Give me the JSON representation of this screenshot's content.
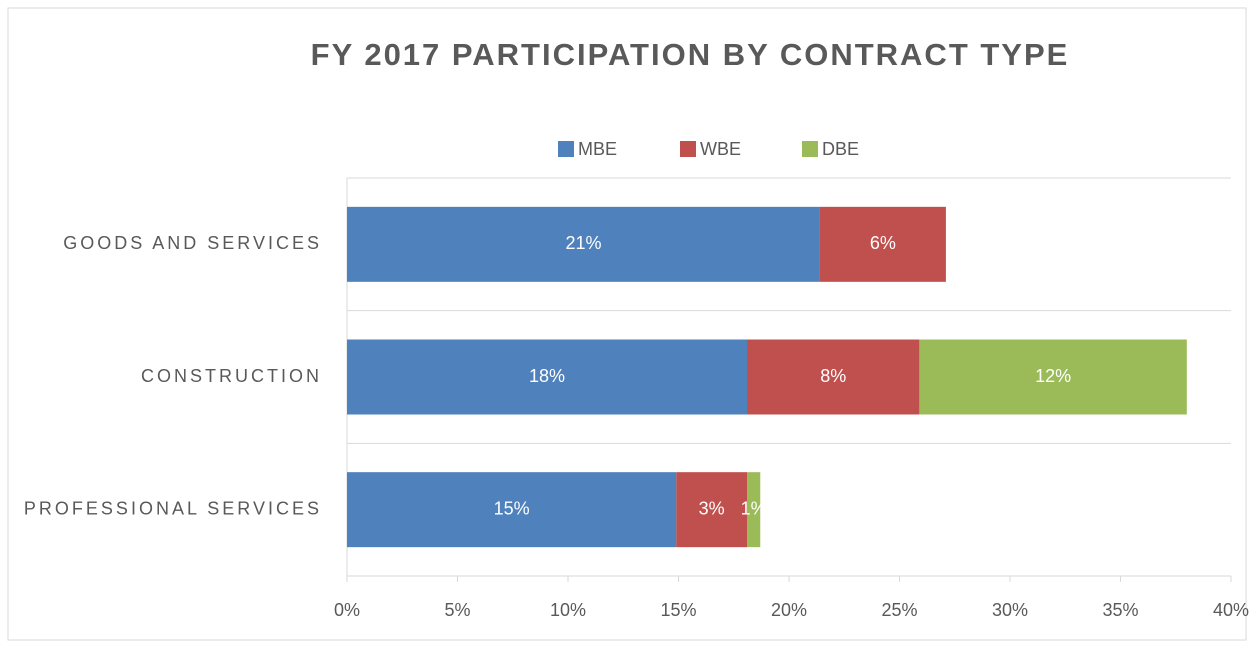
{
  "chart_data": {
    "type": "stacked_bar_horizontal",
    "title": "FY 2017 PARTICIPATION BY CONTRACT TYPE",
    "categories": [
      "GOODS AND SERVICES",
      "CONSTRUCTION",
      "PROFESSIONAL SERVICES"
    ],
    "series": [
      {
        "name": "MBE",
        "color": "#4f81bd",
        "values": [
          21.4,
          18.1,
          14.9
        ],
        "value_labels": [
          "21%",
          "18%",
          "15%"
        ]
      },
      {
        "name": "WBE",
        "color": "#c0504d",
        "values": [
          5.7,
          7.8,
          3.2
        ],
        "value_labels": [
          "6%",
          "8%",
          "3%"
        ]
      },
      {
        "name": "DBE",
        "color": "#9bbb59",
        "values": [
          null,
          12.1,
          0.6
        ],
        "value_labels": [
          null,
          "12%",
          "1%"
        ]
      }
    ],
    "xlim": [
      0,
      40
    ],
    "xticks": [
      {
        "value": 0,
        "label": "0%"
      },
      {
        "value": 5,
        "label": "5%"
      },
      {
        "value": 10,
        "label": "10%"
      },
      {
        "value": 15,
        "label": "15%"
      },
      {
        "value": 20,
        "label": "20%"
      },
      {
        "value": 25,
        "label": "25%"
      },
      {
        "value": 30,
        "label": "30%"
      },
      {
        "value": 35,
        "label": "35%"
      },
      {
        "value": 40,
        "label": "40%"
      }
    ],
    "legend": "top"
  }
}
